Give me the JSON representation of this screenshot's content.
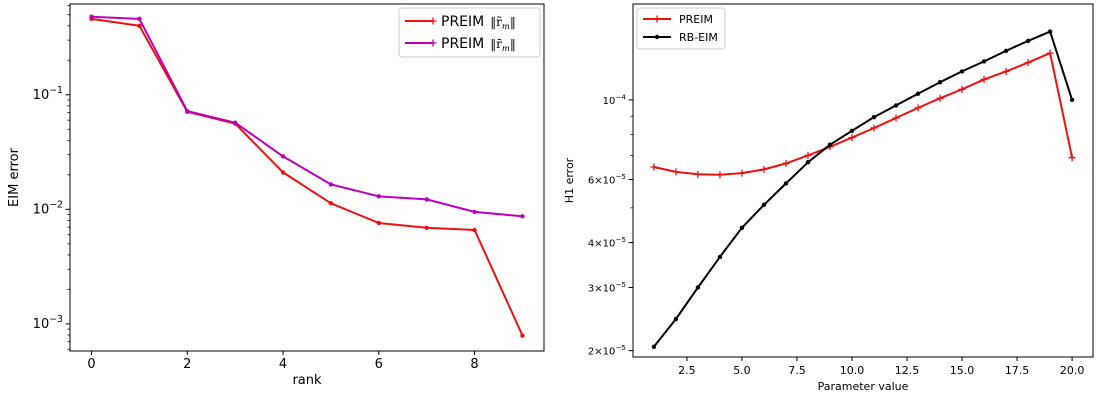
{
  "chart_data": [
    {
      "type": "line",
      "title": "",
      "xlabel": "rank",
      "ylabel": "EIM error",
      "yscale": "log",
      "xlim": [
        -0.45,
        9.45
      ],
      "ylim": [
        0.00058,
        0.62
      ],
      "xticks": [
        0,
        2,
        4,
        6,
        8
      ],
      "xtick_labels": [
        "0",
        "2",
        "4",
        "6",
        "8"
      ],
      "yticks": [
        0.001,
        0.01,
        0.1
      ],
      "ytick_labels": [
        {
          "base": "10",
          "exp": "−3"
        },
        {
          "base": "10",
          "exp": "−2"
        },
        {
          "base": "10",
          "exp": "−1"
        }
      ],
      "grid": false,
      "legend_position": "top-right",
      "series": [
        {
          "name": "PREIM",
          "norm": "r̃",
          "color": "#ee1111",
          "x": [
            0,
            1,
            2,
            3,
            4,
            5,
            6,
            7,
            8,
            9
          ],
          "values": [
            0.46,
            0.4,
            0.071,
            0.056,
            0.021,
            0.0113,
            0.0076,
            0.0069,
            0.0066,
            0.00079
          ]
        },
        {
          "name": "PREIM",
          "norm": "r̄",
          "color": "#bb00bb",
          "x": [
            0,
            1,
            2,
            3,
            4,
            5,
            6,
            7,
            8,
            9
          ],
          "values": [
            0.48,
            0.46,
            0.072,
            0.057,
            0.029,
            0.0165,
            0.013,
            0.0122,
            0.0095,
            0.0087
          ]
        }
      ]
    },
    {
      "type": "line",
      "title": "",
      "xlabel": "Parameter value",
      "ylabel": "H1 error",
      "yscale": "log",
      "xlim": [
        0.05,
        20.95
      ],
      "ylim": [
        1.92e-05,
        0.000185
      ],
      "xticks": [
        2.5,
        5,
        7.5,
        10,
        12.5,
        15,
        17.5,
        20
      ],
      "xtick_labels": [
        "2.5",
        "5.0",
        "7.5",
        "10.0",
        "12.5",
        "15.0",
        "17.5",
        "20.0"
      ],
      "yticks": [
        2e-05,
        3e-05,
        4e-05,
        6e-05,
        0.0001
      ],
      "ytick_labels": [
        {
          "base": "2×10",
          "exp": "−5"
        },
        {
          "base": "3×10",
          "exp": "−5"
        },
        {
          "base": "4×10",
          "exp": "−5"
        },
        {
          "base": "6×10",
          "exp": "−5"
        },
        {
          "base": "10",
          "exp": "−4"
        }
      ],
      "grid": false,
      "legend_position": "top-left",
      "series": [
        {
          "name": "PREIM",
          "color": "#ee1111",
          "marker": "plus",
          "x": [
            1,
            2,
            3,
            4,
            5,
            6,
            7,
            8,
            9,
            10,
            11,
            12,
            13,
            14,
            15,
            16,
            17,
            18,
            19,
            20
          ],
          "values": [
            6.5e-05,
            6.3e-05,
            6.2e-05,
            6.18e-05,
            6.25e-05,
            6.4e-05,
            6.65e-05,
            7e-05,
            7.4e-05,
            7.85e-05,
            8.35e-05,
            8.9e-05,
            9.5e-05,
            0.000101,
            0.000107,
            0.000114,
            0.00012,
            0.000127,
            0.000135,
            6.9e-05
          ]
        },
        {
          "name": "RB-EIM",
          "color": "#000000",
          "marker": "dot",
          "x": [
            1,
            2,
            3,
            4,
            5,
            6,
            7,
            8,
            9,
            10,
            11,
            12,
            13,
            14,
            15,
            16,
            17,
            18,
            19,
            20
          ],
          "values": [
            2.05e-05,
            2.45e-05,
            3e-05,
            3.65e-05,
            4.4e-05,
            5.1e-05,
            5.85e-05,
            6.7e-05,
            7.5e-05,
            8.2e-05,
            8.95e-05,
            9.65e-05,
            0.000104,
            0.000112,
            0.00012,
            0.000128,
            0.000137,
            0.000146,
            0.000155,
            0.0001
          ]
        }
      ]
    }
  ]
}
